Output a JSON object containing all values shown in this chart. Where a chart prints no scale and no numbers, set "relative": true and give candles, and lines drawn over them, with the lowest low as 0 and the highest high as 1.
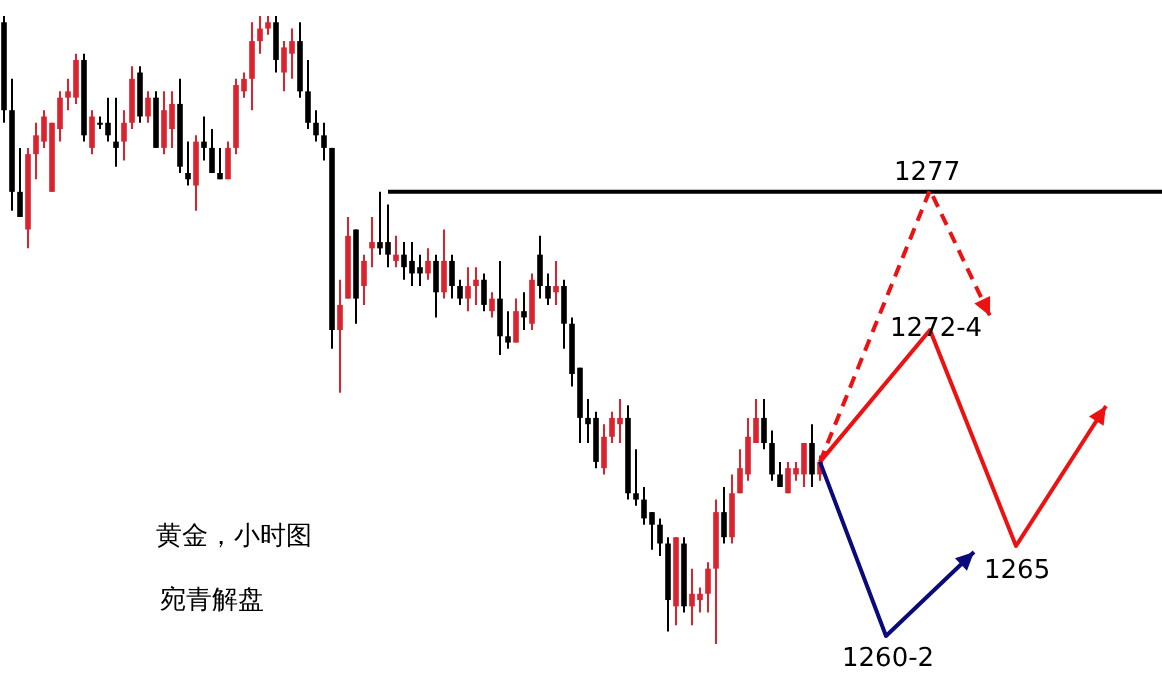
{
  "chart_data": {
    "type": "candlestick",
    "title": "黄金，小时图",
    "relative": true,
    "categories": [
      null,
      null,
      null,
      null,
      null,
      null,
      null,
      null,
      null,
      null,
      null,
      null,
      null,
      null,
      null,
      null,
      null,
      null,
      null,
      null,
      null,
      null,
      null,
      null,
      null,
      null,
      null,
      null,
      null,
      null,
      null,
      null,
      null,
      null,
      null,
      null,
      null,
      null,
      null,
      null,
      null,
      null,
      null,
      null,
      null,
      null,
      null,
      null,
      null,
      null,
      null,
      null,
      null,
      null,
      null,
      null,
      null,
      null,
      null,
      null,
      null,
      null,
      null,
      null,
      null,
      null,
      null,
      null,
      null,
      null,
      null,
      null,
      null,
      null,
      null,
      null,
      null,
      null,
      null,
      null,
      null,
      null,
      null,
      null,
      null,
      null,
      null,
      null,
      null,
      null,
      null,
      null,
      null,
      null,
      null,
      null,
      null,
      null,
      null,
      null,
      null,
      null,
      null
    ],
    "ohlc": [
      [
        0.99,
        1.0,
        0.83,
        0.85
      ],
      [
        0.85,
        0.9,
        0.69,
        0.72
      ],
      [
        0.72,
        0.79,
        0.68,
        0.68
      ],
      [
        0.66,
        0.79,
        0.63,
        0.78
      ],
      [
        0.78,
        0.83,
        0.74,
        0.81
      ],
      [
        0.8,
        0.85,
        0.79,
        0.84
      ],
      [
        0.72,
        0.83,
        0.72,
        0.83
      ],
      [
        0.82,
        0.88,
        0.8,
        0.87
      ],
      [
        0.87,
        0.9,
        0.85,
        0.88
      ],
      [
        0.87,
        0.94,
        0.86,
        0.93
      ],
      [
        0.93,
        0.94,
        0.8,
        0.81
      ],
      [
        0.79,
        0.85,
        0.78,
        0.84
      ],
      [
        0.83,
        0.84,
        0.82,
        0.83
      ],
      [
        0.83,
        0.87,
        0.8,
        0.81
      ],
      [
        0.8,
        0.87,
        0.76,
        0.79
      ],
      [
        0.8,
        0.85,
        0.77,
        0.83
      ],
      [
        0.83,
        0.92,
        0.82,
        0.9
      ],
      [
        0.91,
        0.92,
        0.83,
        0.84
      ],
      [
        0.84,
        0.88,
        0.83,
        0.87
      ],
      [
        0.87,
        0.88,
        0.79,
        0.79
      ],
      [
        0.79,
        0.88,
        0.78,
        0.85
      ],
      [
        0.82,
        0.88,
        0.79,
        0.86
      ],
      [
        0.86,
        0.9,
        0.75,
        0.76
      ],
      [
        0.75,
        0.8,
        0.73,
        0.74
      ],
      [
        0.73,
        0.81,
        0.69,
        0.8
      ],
      [
        0.8,
        0.84,
        0.77,
        0.79
      ],
      [
        0.79,
        0.82,
        0.75,
        0.75
      ],
      [
        0.75,
        0.79,
        0.74,
        0.74
      ],
      [
        0.74,
        0.8,
        0.74,
        0.79
      ],
      [
        0.79,
        0.9,
        0.78,
        0.89
      ],
      [
        0.88,
        0.91,
        0.87,
        0.9
      ],
      [
        0.9,
        0.99,
        0.85,
        0.96
      ],
      [
        0.96,
        1.0,
        0.94,
        0.98
      ],
      [
        0.98,
        1.0,
        0.97,
        0.99
      ],
      [
        0.99,
        1.0,
        0.91,
        0.93
      ],
      [
        0.91,
        0.96,
        0.88,
        0.95
      ],
      [
        0.94,
        0.98,
        0.9,
        0.96
      ],
      [
        0.96,
        0.99,
        0.87,
        0.88
      ],
      [
        0.88,
        0.93,
        0.82,
        0.83
      ],
      [
        0.83,
        0.85,
        0.8,
        0.81
      ],
      [
        0.81,
        0.83,
        0.77,
        0.79
      ],
      [
        0.79,
        0.79,
        0.47,
        0.5
      ],
      [
        0.5,
        0.58,
        0.4,
        0.54
      ],
      [
        0.55,
        0.68,
        0.55,
        0.65
      ],
      [
        0.66,
        0.66,
        0.51,
        0.55
      ],
      [
        0.57,
        0.62,
        0.54,
        0.61
      ],
      [
        0.63,
        0.68,
        0.6,
        0.64
      ],
      [
        0.64,
        0.72,
        0.62,
        0.63
      ],
      [
        0.64,
        0.7,
        0.6,
        0.62
      ],
      [
        0.61,
        0.65,
        0.6,
        0.62
      ],
      [
        0.62,
        0.64,
        0.58,
        0.6
      ],
      [
        0.61,
        0.64,
        0.57,
        0.59
      ],
      [
        0.6,
        0.62,
        0.57,
        0.59
      ],
      [
        0.59,
        0.63,
        0.58,
        0.61
      ],
      [
        0.61,
        0.62,
        0.52,
        0.56
      ],
      [
        0.56,
        0.66,
        0.55,
        0.61
      ],
      [
        0.61,
        0.62,
        0.55,
        0.57
      ],
      [
        0.57,
        0.58,
        0.54,
        0.55
      ],
      [
        0.55,
        0.6,
        0.53,
        0.57
      ],
      [
        0.57,
        0.6,
        0.54,
        0.58
      ],
      [
        0.58,
        0.59,
        0.53,
        0.54
      ],
      [
        0.53,
        0.56,
        0.52,
        0.55
      ],
      [
        0.55,
        0.61,
        0.46,
        0.49
      ],
      [
        0.49,
        0.53,
        0.47,
        0.48
      ],
      [
        0.48,
        0.55,
        0.48,
        0.53
      ],
      [
        0.53,
        0.56,
        0.5,
        0.52
      ],
      [
        0.51,
        0.59,
        0.5,
        0.58
      ],
      [
        0.62,
        0.65,
        0.55,
        0.57
      ],
      [
        0.57,
        0.59,
        0.54,
        0.55
      ],
      [
        0.56,
        0.61,
        0.54,
        0.57
      ],
      [
        0.57,
        0.58,
        0.47,
        0.51
      ],
      [
        0.51,
        0.52,
        0.41,
        0.43
      ],
      [
        0.44,
        0.44,
        0.32,
        0.36
      ],
      [
        0.36,
        0.39,
        0.32,
        0.35
      ],
      [
        0.36,
        0.37,
        0.28,
        0.29
      ],
      [
        0.28,
        0.35,
        0.27,
        0.33
      ],
      [
        0.33,
        0.37,
        0.32,
        0.36
      ],
      [
        0.35,
        0.39,
        0.32,
        0.36
      ],
      [
        0.36,
        0.38,
        0.23,
        0.24
      ],
      [
        0.24,
        0.31,
        0.22,
        0.23
      ],
      [
        0.23,
        0.25,
        0.19,
        0.2
      ],
      [
        0.21,
        0.21,
        0.15,
        0.19
      ],
      [
        0.19,
        0.2,
        0.14,
        0.16
      ],
      [
        0.16,
        0.17,
        0.02,
        0.07
      ],
      [
        0.06,
        0.17,
        0.03,
        0.17
      ],
      [
        0.16,
        0.17,
        0.05,
        0.06
      ],
      [
        0.06,
        0.12,
        0.03,
        0.08
      ],
      [
        0.07,
        0.09,
        0.05,
        0.08
      ],
      [
        0.08,
        0.13,
        0.05,
        0.12
      ],
      [
        0.12,
        0.23,
        0.0,
        0.21
      ],
      [
        0.21,
        0.25,
        0.16,
        0.17
      ],
      [
        0.17,
        0.27,
        0.16,
        0.24
      ],
      [
        0.24,
        0.31,
        0.24,
        0.28
      ],
      [
        0.27,
        0.36,
        0.26,
        0.33
      ],
      [
        0.32,
        0.39,
        0.32,
        0.36
      ],
      [
        0.36,
        0.39,
        0.31,
        0.32
      ],
      [
        0.32,
        0.34,
        0.26,
        0.27
      ],
      [
        0.27,
        0.29,
        0.25,
        0.25
      ],
      [
        0.24,
        0.29,
        0.24,
        0.28
      ],
      [
        0.27,
        0.29,
        0.26,
        0.28
      ],
      [
        0.27,
        0.32,
        0.25,
        0.32
      ],
      [
        0.32,
        0.35,
        0.25,
        0.27
      ],
      [
        0.27,
        0.3,
        0.26,
        0.29
      ]
    ],
    "colors": [
      "#000000",
      "#000000",
      "#000000",
      "#d9232e",
      "#d9232e",
      "#d9232e",
      "#d9232e",
      "#d9232e",
      "#d9232e",
      "#d9232e",
      "#000000",
      "#d9232e",
      "#000000",
      "#000000",
      "#000000",
      "#d9232e",
      "#d9232e",
      "#000000",
      "#d9232e",
      "#000000",
      "#d9232e",
      "#d9232e",
      "#000000",
      "#000000",
      "#d9232e",
      "#000000",
      "#000000",
      "#000000",
      "#d9232e",
      "#d9232e",
      "#d9232e",
      "#d9232e",
      "#d9232e",
      "#d9232e",
      "#000000",
      "#d9232e",
      "#d9232e",
      "#000000",
      "#000000",
      "#000000",
      "#000000",
      "#000000",
      "#d9232e",
      "#d9232e",
      "#000000",
      "#d9232e",
      "#d9232e",
      "#000000",
      "#000000",
      "#d9232e",
      "#000000",
      "#000000",
      "#000000",
      "#d9232e",
      "#000000",
      "#d9232e",
      "#000000",
      "#000000",
      "#d9232e",
      "#d9232e",
      "#000000",
      "#d9232e",
      "#000000",
      "#000000",
      "#d9232e",
      "#000000",
      "#d9232e",
      "#000000",
      "#000000",
      "#d9232e",
      "#000000",
      "#000000",
      "#000000",
      "#000000",
      "#000000",
      "#d9232e",
      "#d9232e",
      "#d9232e",
      "#000000",
      "#000000",
      "#000000",
      "#000000",
      "#000000",
      "#000000",
      "#d9232e",
      "#000000",
      "#d9232e",
      "#d9232e",
      "#d9232e",
      "#d9232e",
      "#000000",
      "#d9232e",
      "#d9232e",
      "#d9232e",
      "#d9232e",
      "#000000",
      "#000000",
      "#000000",
      "#d9232e",
      "#d9232e",
      "#d9232e",
      "#000000",
      "#d9232e"
    ],
    "ref_lines": [
      {
        "axis": "y",
        "value": 0.72,
        "color": "#000000",
        "line_style": "solid"
      }
    ],
    "annotations": [
      "宛青解盘",
      "1272-4",
      "1265",
      "1260-2",
      "1277"
    ]
  }
}
